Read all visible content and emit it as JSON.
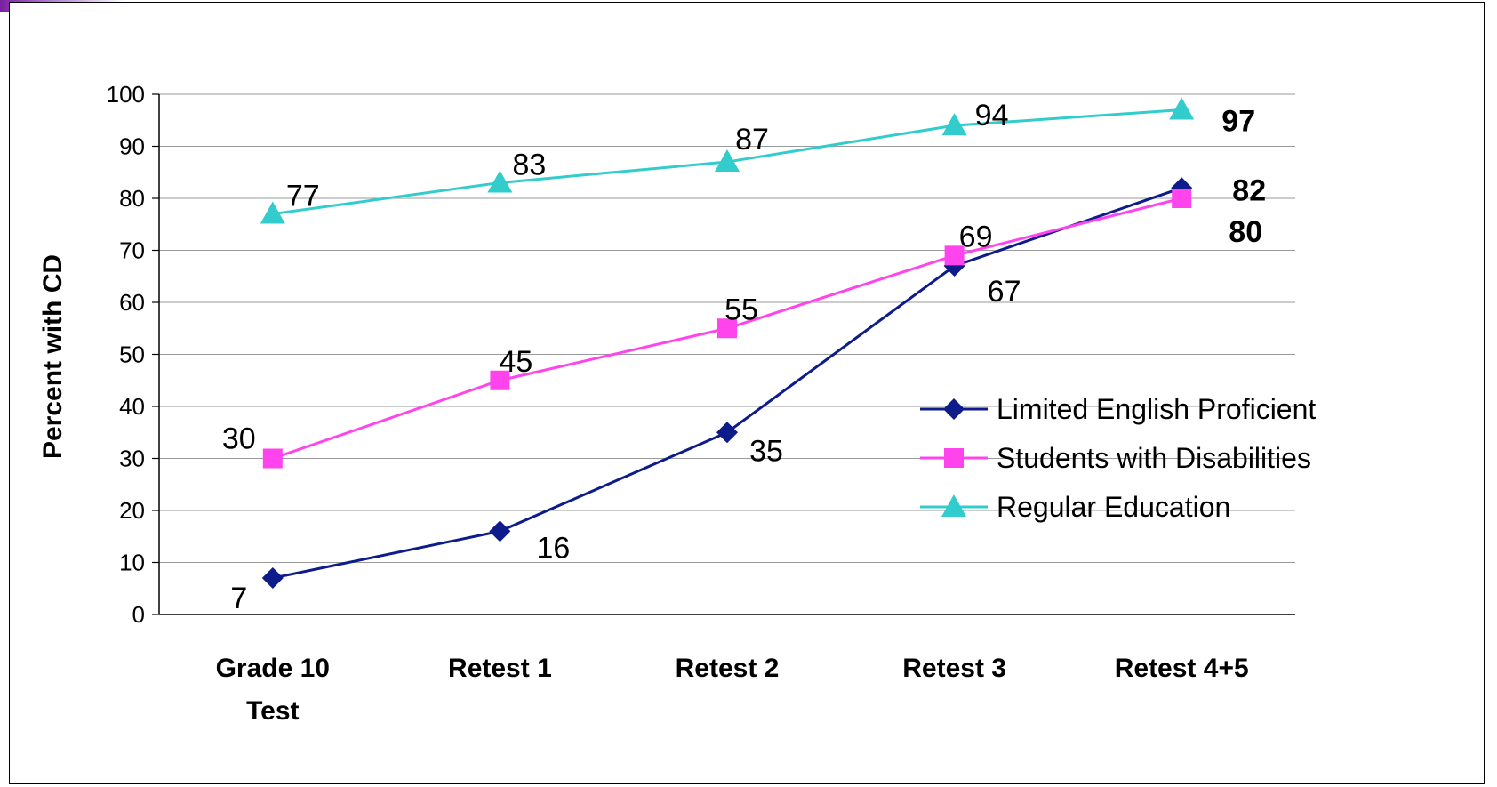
{
  "chart_data": {
    "type": "line",
    "ylabel": "Percent with CD",
    "xlabel": "",
    "ylim": [
      0,
      100
    ],
    "yticks": [
      "0",
      "10",
      "20",
      "30",
      "40",
      "50",
      "60",
      "70",
      "80",
      "90",
      "100"
    ],
    "grid": true,
    "legend_position": "right",
    "categories": [
      [
        "Grade 10",
        "Test"
      ],
      [
        "Retest 1"
      ],
      [
        "Retest 2"
      ],
      [
        "Retest 3"
      ],
      [
        "Retest 4+5"
      ]
    ],
    "series": [
      {
        "name": "Limited English Proficient",
        "color": "#0d1c8a",
        "marker": "diamond",
        "values": [
          7,
          16,
          35,
          67,
          82
        ],
        "labels": [
          "7",
          "16",
          "35",
          "67",
          "82"
        ]
      },
      {
        "name": "Students with Disabilities",
        "color": "#ff44ee",
        "marker": "square",
        "values": [
          30,
          45,
          55,
          69,
          80
        ],
        "labels": [
          "30",
          "45",
          "55",
          "69",
          "80"
        ]
      },
      {
        "name": "Regular Education",
        "color": "#33cccc",
        "marker": "triangle",
        "values": [
          77,
          83,
          87,
          94,
          97
        ],
        "labels": [
          "77",
          "83",
          "87",
          "94",
          "97"
        ]
      }
    ]
  }
}
